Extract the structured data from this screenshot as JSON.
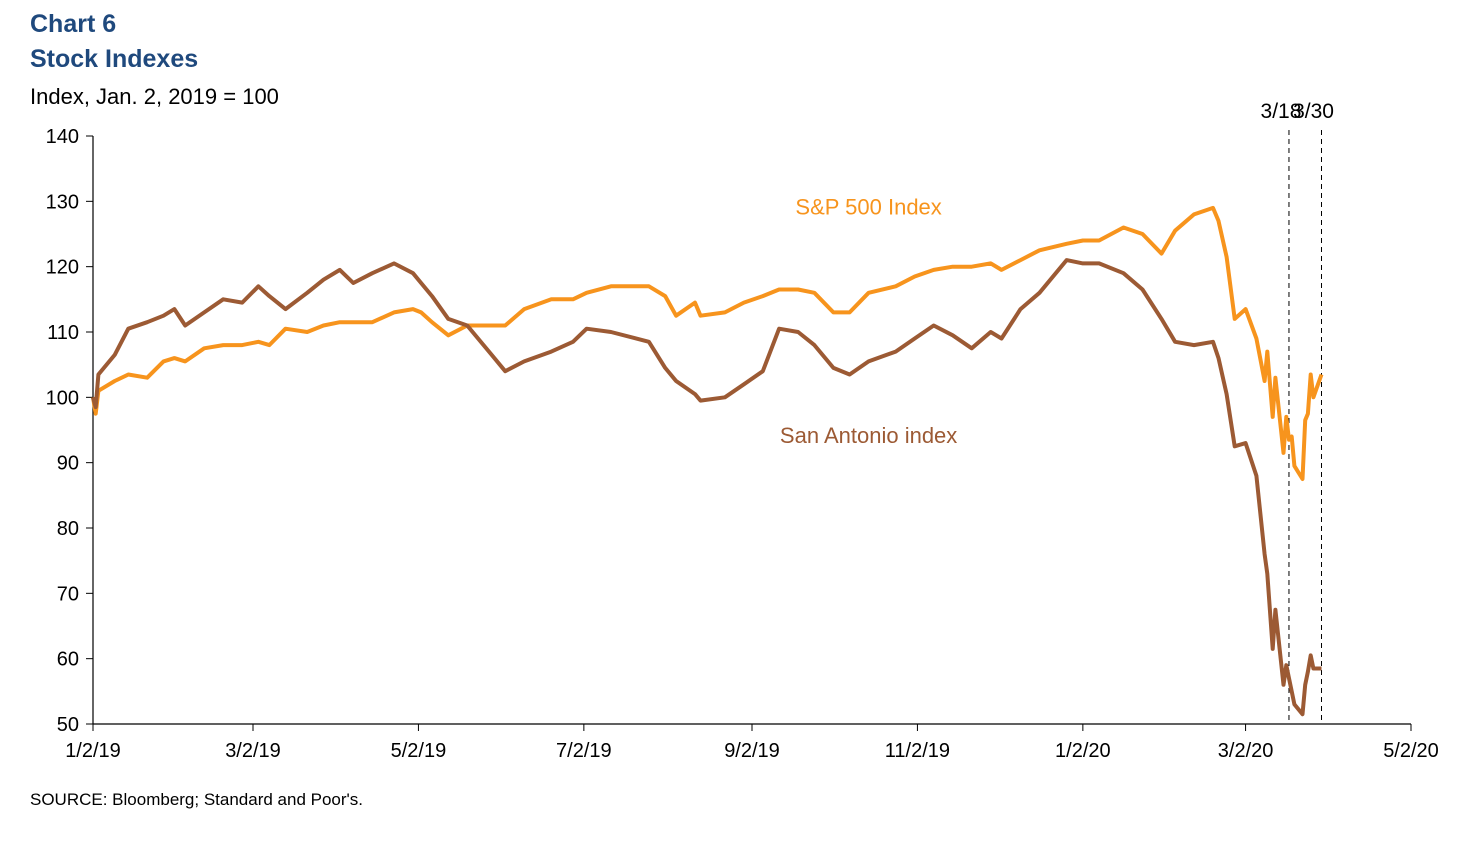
{
  "header": {
    "chart_number": "Chart 6",
    "title": "Stock Indexes",
    "subtitle": "Index, Jan. 2, 2019 = 100"
  },
  "footer": {
    "source": "SOURCE: Bloomberg; Standard and Poor's."
  },
  "colors": {
    "sp500": "#f7941d",
    "san_antonio": "#9c5a34",
    "title": "#1f497d"
  },
  "chart_data": {
    "type": "line",
    "title": "Stock Indexes",
    "ylabel": "Index, Jan. 2, 2019 = 100",
    "xlabel": "",
    "ylim": [
      50,
      140
    ],
    "y_ticks": [
      50,
      60,
      70,
      80,
      90,
      100,
      110,
      120,
      130,
      140
    ],
    "x_range": [
      "2019-01-02",
      "2020-05-02"
    ],
    "x_ticks": [
      {
        "date": "2019-01-02",
        "label": "1/2/19"
      },
      {
        "date": "2019-03-02",
        "label": "3/2/19"
      },
      {
        "date": "2019-05-02",
        "label": "5/2/19"
      },
      {
        "date": "2019-07-02",
        "label": "7/2/19"
      },
      {
        "date": "2019-09-02",
        "label": "9/2/19"
      },
      {
        "date": "2019-11-02",
        "label": "11/2/19"
      },
      {
        "date": "2020-01-02",
        "label": "1/2/20"
      },
      {
        "date": "2020-03-02",
        "label": "3/2/20"
      },
      {
        "date": "2020-05-02",
        "label": "5/2/20"
      }
    ],
    "annotations": [
      {
        "date": "2020-03-18",
        "label": "3/18"
      },
      {
        "date": "2020-03-30",
        "label": "3/30"
      }
    ],
    "grid": false,
    "series": [
      {
        "name": "S&P 500 Index",
        "label_anchor": {
          "date": "2019-10-15",
          "value": 128
        },
        "points": [
          [
            "2019-01-02",
            100.0
          ],
          [
            "2019-01-03",
            97.5
          ],
          [
            "2019-01-04",
            101.0
          ],
          [
            "2019-01-10",
            102.5
          ],
          [
            "2019-01-15",
            103.5
          ],
          [
            "2019-01-22",
            103.0
          ],
          [
            "2019-01-28",
            105.5
          ],
          [
            "2019-02-01",
            106.0
          ],
          [
            "2019-02-05",
            105.5
          ],
          [
            "2019-02-12",
            107.5
          ],
          [
            "2019-02-19",
            108.0
          ],
          [
            "2019-02-26",
            108.0
          ],
          [
            "2019-03-04",
            108.5
          ],
          [
            "2019-03-08",
            108.0
          ],
          [
            "2019-03-14",
            110.5
          ],
          [
            "2019-03-22",
            110.0
          ],
          [
            "2019-03-28",
            111.0
          ],
          [
            "2019-04-03",
            111.5
          ],
          [
            "2019-04-08",
            111.5
          ],
          [
            "2019-04-15",
            111.5
          ],
          [
            "2019-04-23",
            113.0
          ],
          [
            "2019-04-30",
            113.5
          ],
          [
            "2019-05-03",
            113.0
          ],
          [
            "2019-05-07",
            111.5
          ],
          [
            "2019-05-13",
            109.5
          ],
          [
            "2019-05-20",
            111.0
          ],
          [
            "2019-05-29",
            111.0
          ],
          [
            "2019-06-03",
            111.0
          ],
          [
            "2019-06-10",
            113.5
          ],
          [
            "2019-06-20",
            115.0
          ],
          [
            "2019-06-28",
            115.0
          ],
          [
            "2019-07-03",
            116.0
          ],
          [
            "2019-07-12",
            117.0
          ],
          [
            "2019-07-26",
            117.0
          ],
          [
            "2019-08-01",
            115.5
          ],
          [
            "2019-08-05",
            112.5
          ],
          [
            "2019-08-12",
            114.5
          ],
          [
            "2019-08-14",
            112.5
          ],
          [
            "2019-08-23",
            113.0
          ],
          [
            "2019-08-30",
            114.5
          ],
          [
            "2019-09-06",
            115.5
          ],
          [
            "2019-09-12",
            116.5
          ],
          [
            "2019-09-19",
            116.5
          ],
          [
            "2019-09-25",
            116.0
          ],
          [
            "2019-10-02",
            113.0
          ],
          [
            "2019-10-08",
            113.0
          ],
          [
            "2019-10-15",
            116.0
          ],
          [
            "2019-10-25",
            117.0
          ],
          [
            "2019-11-01",
            118.5
          ],
          [
            "2019-11-08",
            119.5
          ],
          [
            "2019-11-15",
            120.0
          ],
          [
            "2019-11-22",
            120.0
          ],
          [
            "2019-11-29",
            120.5
          ],
          [
            "2019-12-03",
            119.5
          ],
          [
            "2019-12-10",
            121.0
          ],
          [
            "2019-12-17",
            122.5
          ],
          [
            "2019-12-27",
            123.5
          ],
          [
            "2020-01-02",
            124.0
          ],
          [
            "2020-01-08",
            124.0
          ],
          [
            "2020-01-17",
            126.0
          ],
          [
            "2020-01-24",
            125.0
          ],
          [
            "2020-01-31",
            122.0
          ],
          [
            "2020-02-05",
            125.5
          ],
          [
            "2020-02-12",
            128.0
          ],
          [
            "2020-02-19",
            129.0
          ],
          [
            "2020-02-21",
            127.0
          ],
          [
            "2020-02-24",
            121.5
          ],
          [
            "2020-02-27",
            112.0
          ],
          [
            "2020-03-02",
            113.5
          ],
          [
            "2020-03-06",
            109.0
          ],
          [
            "2020-03-09",
            102.5
          ],
          [
            "2020-03-10",
            107.0
          ],
          [
            "2020-03-12",
            97.0
          ],
          [
            "2020-03-13",
            103.0
          ],
          [
            "2020-03-16",
            91.5
          ],
          [
            "2020-03-17",
            97.0
          ],
          [
            "2020-03-18",
            93.5
          ],
          [
            "2020-03-19",
            94.0
          ],
          [
            "2020-03-20",
            89.5
          ],
          [
            "2020-03-23",
            87.5
          ],
          [
            "2020-03-24",
            96.5
          ],
          [
            "2020-03-25",
            97.5
          ],
          [
            "2020-03-26",
            103.5
          ],
          [
            "2020-03-27",
            100.0
          ],
          [
            "2020-03-30",
            103.5
          ]
        ]
      },
      {
        "name": "San Antonio index",
        "label_anchor": {
          "date": "2019-10-15",
          "value": 93
        },
        "points": [
          [
            "2019-01-02",
            100.0
          ],
          [
            "2019-01-03",
            98.5
          ],
          [
            "2019-01-04",
            103.5
          ],
          [
            "2019-01-10",
            106.5
          ],
          [
            "2019-01-15",
            110.5
          ],
          [
            "2019-01-22",
            111.5
          ],
          [
            "2019-01-28",
            112.5
          ],
          [
            "2019-02-01",
            113.5
          ],
          [
            "2019-02-05",
            111.0
          ],
          [
            "2019-02-12",
            113.0
          ],
          [
            "2019-02-19",
            115.0
          ],
          [
            "2019-02-26",
            114.5
          ],
          [
            "2019-03-04",
            117.0
          ],
          [
            "2019-03-08",
            115.5
          ],
          [
            "2019-03-14",
            113.5
          ],
          [
            "2019-03-22",
            116.0
          ],
          [
            "2019-03-28",
            118.0
          ],
          [
            "2019-04-03",
            119.5
          ],
          [
            "2019-04-08",
            117.5
          ],
          [
            "2019-04-15",
            119.0
          ],
          [
            "2019-04-23",
            120.5
          ],
          [
            "2019-04-30",
            119.0
          ],
          [
            "2019-05-03",
            117.5
          ],
          [
            "2019-05-07",
            115.5
          ],
          [
            "2019-05-13",
            112.0
          ],
          [
            "2019-05-20",
            111.0
          ],
          [
            "2019-05-29",
            106.5
          ],
          [
            "2019-06-03",
            104.0
          ],
          [
            "2019-06-10",
            105.5
          ],
          [
            "2019-06-20",
            107.0
          ],
          [
            "2019-06-28",
            108.5
          ],
          [
            "2019-07-03",
            110.5
          ],
          [
            "2019-07-12",
            110.0
          ],
          [
            "2019-07-26",
            108.5
          ],
          [
            "2019-08-01",
            104.5
          ],
          [
            "2019-08-05",
            102.5
          ],
          [
            "2019-08-12",
            100.5
          ],
          [
            "2019-08-14",
            99.5
          ],
          [
            "2019-08-23",
            100.0
          ],
          [
            "2019-08-30",
            102.0
          ],
          [
            "2019-09-06",
            104.0
          ],
          [
            "2019-09-12",
            110.5
          ],
          [
            "2019-09-19",
            110.0
          ],
          [
            "2019-09-25",
            108.0
          ],
          [
            "2019-10-02",
            104.5
          ],
          [
            "2019-10-08",
            103.5
          ],
          [
            "2019-10-15",
            105.5
          ],
          [
            "2019-10-25",
            107.0
          ],
          [
            "2019-11-01",
            109.0
          ],
          [
            "2019-11-08",
            111.0
          ],
          [
            "2019-11-15",
            109.5
          ],
          [
            "2019-11-22",
            107.5
          ],
          [
            "2019-11-29",
            110.0
          ],
          [
            "2019-12-03",
            109.0
          ],
          [
            "2019-12-10",
            113.5
          ],
          [
            "2019-12-17",
            116.0
          ],
          [
            "2019-12-27",
            121.0
          ],
          [
            "2020-01-02",
            120.5
          ],
          [
            "2020-01-08",
            120.5
          ],
          [
            "2020-01-17",
            119.0
          ],
          [
            "2020-01-24",
            116.5
          ],
          [
            "2020-01-31",
            112.0
          ],
          [
            "2020-02-05",
            108.5
          ],
          [
            "2020-02-12",
            108.0
          ],
          [
            "2020-02-19",
            108.5
          ],
          [
            "2020-02-21",
            106.0
          ],
          [
            "2020-02-24",
            100.5
          ],
          [
            "2020-02-27",
            92.5
          ],
          [
            "2020-03-02",
            93.0
          ],
          [
            "2020-03-06",
            88.0
          ],
          [
            "2020-03-09",
            76.0
          ],
          [
            "2020-03-10",
            73.0
          ],
          [
            "2020-03-12",
            61.5
          ],
          [
            "2020-03-13",
            67.5
          ],
          [
            "2020-03-16",
            56.0
          ],
          [
            "2020-03-17",
            59.0
          ],
          [
            "2020-03-18",
            57.0
          ],
          [
            "2020-03-19",
            55.0
          ],
          [
            "2020-03-20",
            53.0
          ],
          [
            "2020-03-23",
            51.5
          ],
          [
            "2020-03-24",
            56.0
          ],
          [
            "2020-03-25",
            58.0
          ],
          [
            "2020-03-26",
            60.5
          ],
          [
            "2020-03-27",
            58.5
          ],
          [
            "2020-03-30",
            58.5
          ]
        ]
      }
    ]
  }
}
